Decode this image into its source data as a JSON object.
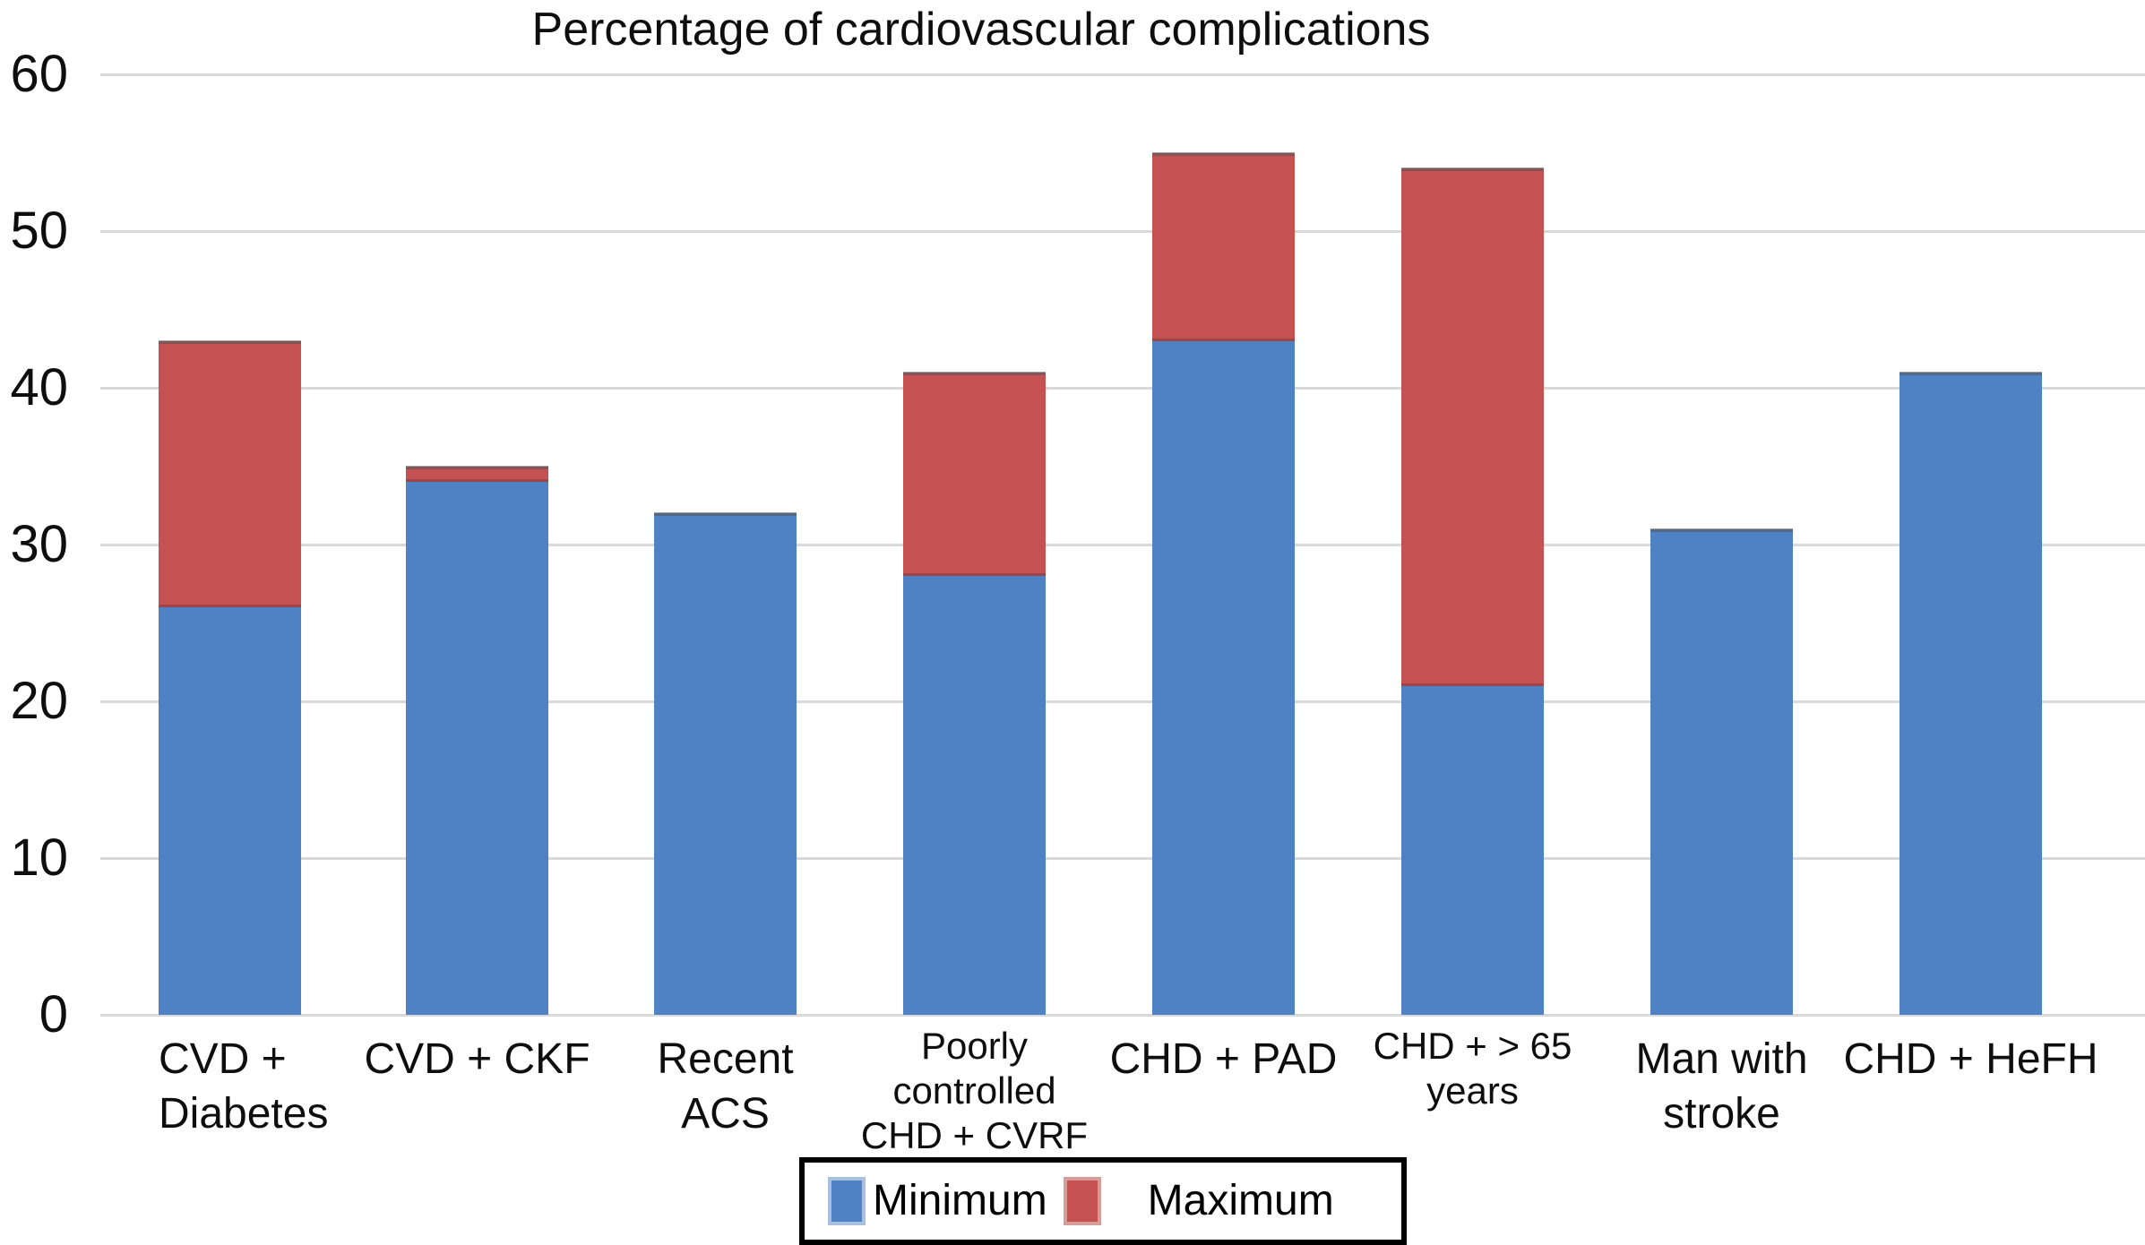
{
  "title": "Percentage of cardiovascular complications",
  "y_axis": {
    "ticks": [
      "0",
      "10",
      "20",
      "30",
      "40",
      "50",
      "60"
    ],
    "min": 0,
    "max": 60
  },
  "legend": {
    "items": [
      {
        "label": "Minimum",
        "color": "#4e82c4"
      },
      {
        "label": "Maximum",
        "color": "#c65153"
      }
    ]
  },
  "colors": {
    "bar_minimum": "#4e82c4",
    "bar_maximum": "#c65153",
    "gridline": "#d9d9d9",
    "legend_border": "#000000",
    "text": "#0e0e0e"
  },
  "chart_data": {
    "type": "bar",
    "stacked": true,
    "title": "Percentage of cardiovascular complications",
    "categories": [
      "CVD + Diabetes",
      "CVD + CKF",
      "Recent ACS",
      "Poorly controlled CHD + CVRF",
      "CHD + PAD",
      "CHD + > 65 years",
      "Man with stroke",
      "CHD + HeFH"
    ],
    "category_lines": [
      [
        "CVD +",
        "Diabetes"
      ],
      [
        "CVD + CKF"
      ],
      [
        "Recent",
        "ACS"
      ],
      [
        "Poorly",
        "controlled",
        "CHD + CVRF"
      ],
      [
        "CHD + PAD"
      ],
      [
        "CHD + > 65",
        "years"
      ],
      [
        "Man with",
        "stroke"
      ],
      [
        "CHD + HeFH"
      ]
    ],
    "category_small_font": [
      false,
      false,
      false,
      true,
      false,
      true,
      false,
      false
    ],
    "category_align": [
      "left",
      "center",
      "center",
      "center",
      "center",
      "center",
      "center",
      "center"
    ],
    "series": [
      {
        "name": "Minimum",
        "color": "#4e82c4",
        "values": [
          26,
          34,
          32,
          28,
          43,
          21,
          31,
          41
        ]
      },
      {
        "name": "Maximum",
        "color": "#c65153",
        "values": [
          43,
          35,
          32,
          41,
          55,
          54,
          31,
          41
        ],
        "note": "values are stack totals; red segment height = maximum - minimum"
      }
    ],
    "ylabel": "",
    "xlabel": "",
    "ylim": [
      0,
      60
    ],
    "grid": "horizontal",
    "legend_position": "bottom-center"
  }
}
